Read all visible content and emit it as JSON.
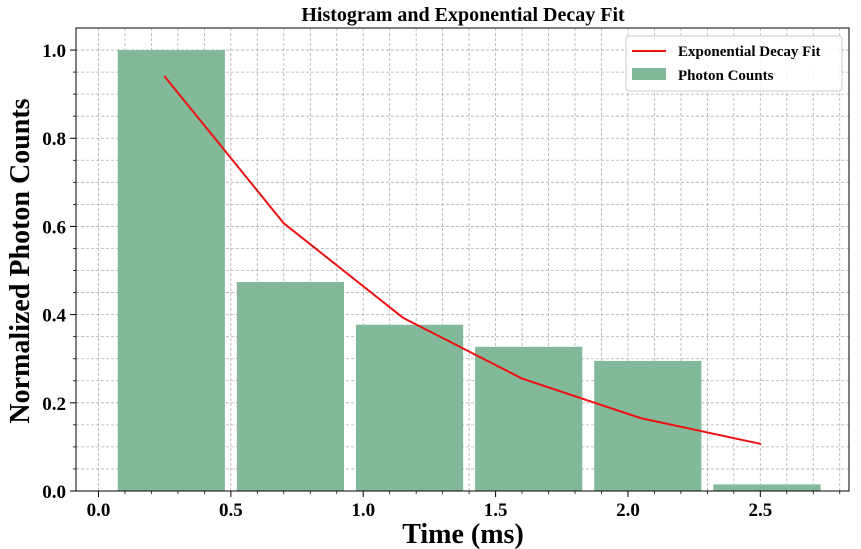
{
  "chart_data": {
    "type": "bar",
    "title": "Histogram and Exponential Decay Fit",
    "xlabel": "Time (ms)",
    "ylabel": "Normalized Photon Counts",
    "xlim": [
      -0.085,
      2.835
    ],
    "ylim": [
      0.0,
      1.05
    ],
    "x_ticks": [
      {
        "value": 0.0,
        "label": "0.0"
      },
      {
        "value": 0.5,
        "label": "0.5"
      },
      {
        "value": 1.0,
        "label": "1.0"
      },
      {
        "value": 1.5,
        "label": "1.5"
      },
      {
        "value": 2.0,
        "label": "2.0"
      },
      {
        "value": 2.5,
        "label": "2.5"
      }
    ],
    "y_ticks": [
      {
        "value": 0.0,
        "label": "0.0"
      },
      {
        "value": 0.2,
        "label": "0.2"
      },
      {
        "value": 0.4,
        "label": "0.4"
      },
      {
        "value": 0.6,
        "label": "0.6"
      },
      {
        "value": 0.8,
        "label": "0.8"
      },
      {
        "value": 1.0,
        "label": "1.0"
      }
    ],
    "grid": true,
    "minor_grid": true,
    "legend_position": "top-right",
    "histogram": {
      "name": "Photon Counts",
      "color": "#83b99b",
      "bin_edges": [
        0.05,
        0.5,
        0.95,
        1.4,
        1.85,
        2.3,
        2.75
      ],
      "values": [
        1.0,
        0.474,
        0.377,
        0.327,
        0.295,
        0.015
      ]
    },
    "fit_line": {
      "name": "Exponential Decay Fit",
      "color": "#ee1111",
      "x": [
        0.25,
        0.7,
        1.15,
        1.6,
        2.05,
        2.5
      ],
      "y": [
        0.94,
        0.607,
        0.393,
        0.255,
        0.165,
        0.107
      ]
    }
  }
}
